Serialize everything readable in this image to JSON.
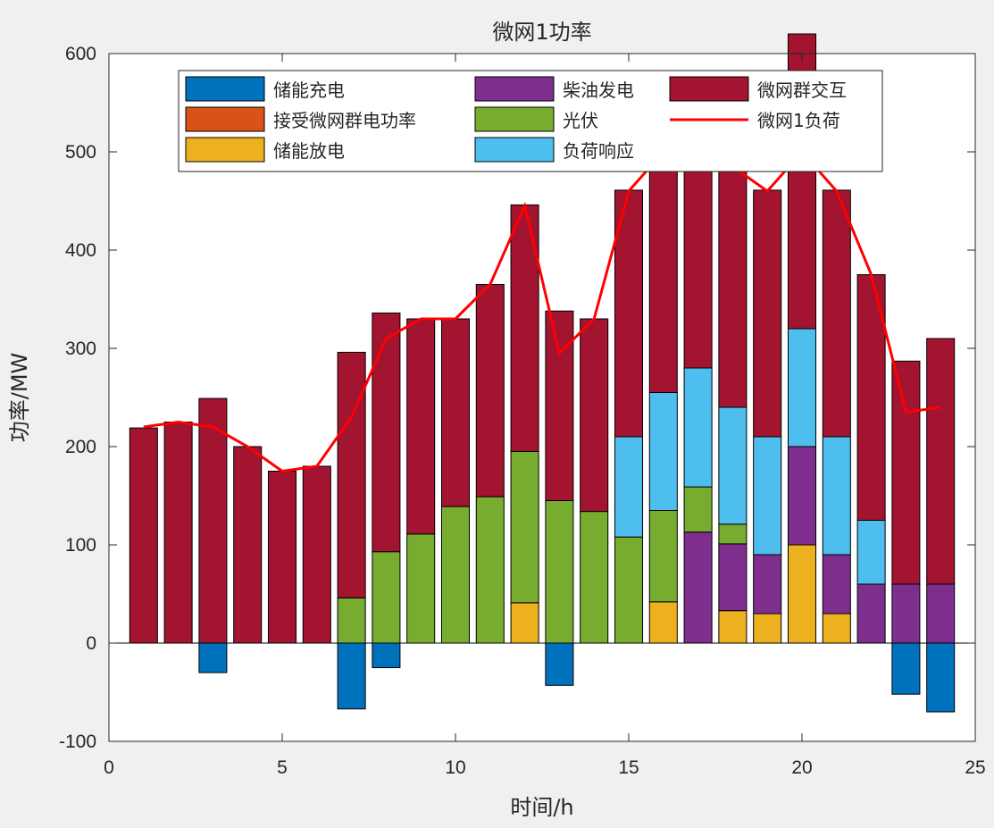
{
  "chart_data": {
    "type": "bar",
    "stacked": true,
    "title": "微网1功率",
    "xlabel": "时间/h",
    "ylabel": "功率/MW",
    "xlim": [
      0,
      25
    ],
    "ylim": [
      -100,
      600
    ],
    "xticks": [
      "0",
      "5",
      "10",
      "15",
      "20",
      "25"
    ],
    "yticks": [
      "-100",
      "0",
      "100",
      "200",
      "300",
      "400",
      "500",
      "600"
    ],
    "grid": false,
    "legend_position": "top-center",
    "x": [
      1,
      2,
      3,
      4,
      5,
      6,
      7,
      8,
      9,
      10,
      11,
      12,
      13,
      14,
      15,
      16,
      17,
      18,
      19,
      20,
      21,
      22,
      23,
      24
    ],
    "series": [
      {
        "name": "储能充电",
        "color": "#0072BD",
        "values": [
          0,
          0,
          -30,
          0,
          0,
          0,
          -67,
          -25,
          0,
          0,
          0,
          0,
          -43,
          0,
          0,
          0,
          0,
          0,
          0,
          0,
          0,
          0,
          -52,
          -70
        ]
      },
      {
        "name": "接受微网群电功率",
        "color": "#D95319",
        "values": [
          0,
          0,
          0,
          0,
          0,
          0,
          0,
          0,
          0,
          0,
          0,
          0,
          0,
          0,
          0,
          0,
          0,
          0,
          0,
          0,
          0,
          0,
          0,
          0
        ]
      },
      {
        "name": "储能放电",
        "color": "#EDB120",
        "values": [
          0,
          0,
          0,
          0,
          0,
          0,
          0,
          0,
          0,
          0,
          0,
          41,
          0,
          0,
          0,
          42,
          0,
          33,
          30,
          100,
          30,
          0,
          0,
          0
        ]
      },
      {
        "name": "柴油发电",
        "color": "#7E2F8E",
        "values": [
          0,
          0,
          0,
          0,
          0,
          0,
          0,
          0,
          0,
          0,
          0,
          0,
          0,
          0,
          0,
          0,
          113,
          68,
          60,
          100,
          60,
          60,
          60,
          60
        ]
      },
      {
        "name": "光伏",
        "color": "#77AC30",
        "values": [
          0,
          0,
          0,
          0,
          0,
          0,
          46,
          93,
          111,
          139,
          149,
          154,
          145,
          134,
          108,
          93,
          46,
          20,
          0,
          0,
          0,
          0,
          0,
          0
        ]
      },
      {
        "name": "负荷响应",
        "color": "#4DBEEE",
        "values": [
          0,
          0,
          0,
          0,
          0,
          0,
          0,
          0,
          0,
          0,
          0,
          0,
          0,
          0,
          102,
          120,
          121,
          119,
          120,
          120,
          120,
          65,
          0,
          0
        ]
      },
      {
        "name": "微网群交互",
        "color": "#A2142F",
        "values": [
          219,
          225,
          249,
          200,
          175,
          180,
          250,
          243,
          219,
          191,
          216,
          251,
          193,
          196,
          251,
          285,
          284,
          300,
          251,
          300,
          251,
          250,
          227,
          250
        ]
      }
    ],
    "line": {
      "name": "微网1负荷",
      "color": "#FF0000",
      "values": [
        220,
        225,
        220,
        200,
        175,
        180,
        230,
        310,
        330,
        330,
        365,
        445,
        295,
        330,
        460,
        500,
        500,
        485,
        460,
        500,
        460,
        375,
        235,
        240
      ]
    }
  }
}
